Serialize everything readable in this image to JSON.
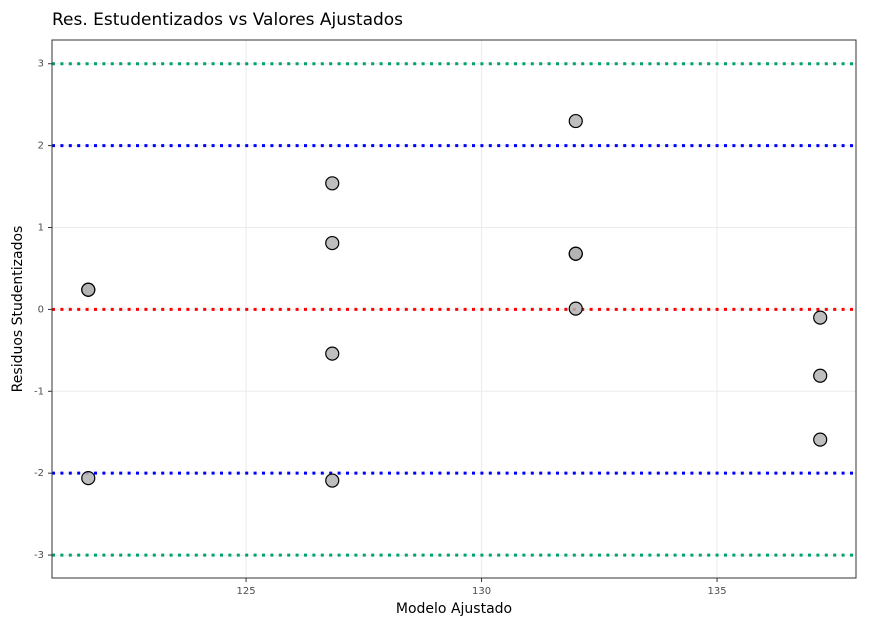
{
  "chart_data": {
    "type": "scatter",
    "title": "Res. Estudentizados vs Valores Ajustados",
    "x_label": "Modelo Ajustado",
    "y_label": "Residuos Studentizados",
    "x": [
      121.65,
      121.65,
      121.65,
      126.83,
      126.83,
      126.83,
      126.83,
      132.0,
      132.0,
      132.0,
      132.0,
      137.19,
      137.19,
      137.19
    ],
    "values": [
      0.24,
      0.24,
      -2.06,
      1.54,
      0.81,
      -0.54,
      -2.09,
      2.3,
      0.68,
      0.68,
      0.01,
      -0.1,
      -0.81,
      -1.59
    ],
    "color": "#b3b3b3",
    "xlim": [
      120.88,
      137.95
    ],
    "ylim": [
      -3.28,
      3.29
    ],
    "xticks": [
      125,
      130,
      135
    ],
    "yticks": [
      -3,
      -2,
      -1,
      0,
      1,
      2,
      3
    ],
    "grid": true,
    "reference_lines": [
      {
        "value": 3,
        "color": "#00a070"
      },
      {
        "value": 2,
        "color": "#0000ff"
      },
      {
        "value": 0,
        "color": "#ff0000"
      },
      {
        "value": -2,
        "color": "#0000ff"
      },
      {
        "value": -3,
        "color": "#00a070"
      }
    ]
  }
}
